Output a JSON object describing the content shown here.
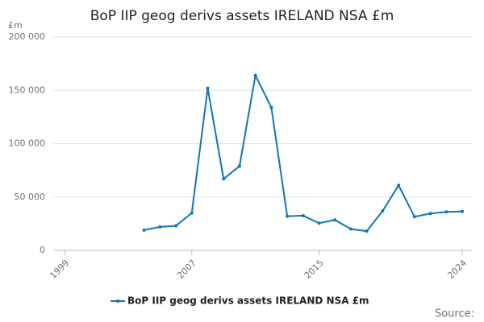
{
  "chart_data": {
    "type": "line",
    "title": "BoP IIP geog derivs assets IRELAND NSA £m",
    "y_unit": "£m",
    "source": "Source:",
    "x": [
      2004,
      2005,
      2006,
      2007,
      2008,
      2009,
      2010,
      2011,
      2012,
      2013,
      2014,
      2015,
      2016,
      2017,
      2018,
      2019,
      2020,
      2021,
      2022,
      2023,
      2024
    ],
    "series": [
      {
        "name": "BoP IIP geog derivs assets IRELAND NSA £m",
        "color": "#0f76b6",
        "values": [
          19000,
          22000,
          23000,
          35000,
          152000,
          67000,
          79000,
          164000,
          134000,
          32000,
          32500,
          25500,
          28500,
          20000,
          18000,
          37000,
          61000,
          31500,
          34500,
          36000,
          36500
        ]
      }
    ],
    "xlim": [
      1999,
      2024
    ],
    "xticks": [
      1999,
      2007,
      2015,
      2024
    ],
    "ylim": [
      0,
      200000
    ],
    "yticks": [
      {
        "value": 0,
        "label": "0"
      },
      {
        "value": 50000,
        "label": "50 000"
      },
      {
        "value": 100000,
        "label": "100 000"
      },
      {
        "value": 150000,
        "label": "150 000"
      },
      {
        "value": 200000,
        "label": "200 000"
      }
    ],
    "grid": true
  }
}
